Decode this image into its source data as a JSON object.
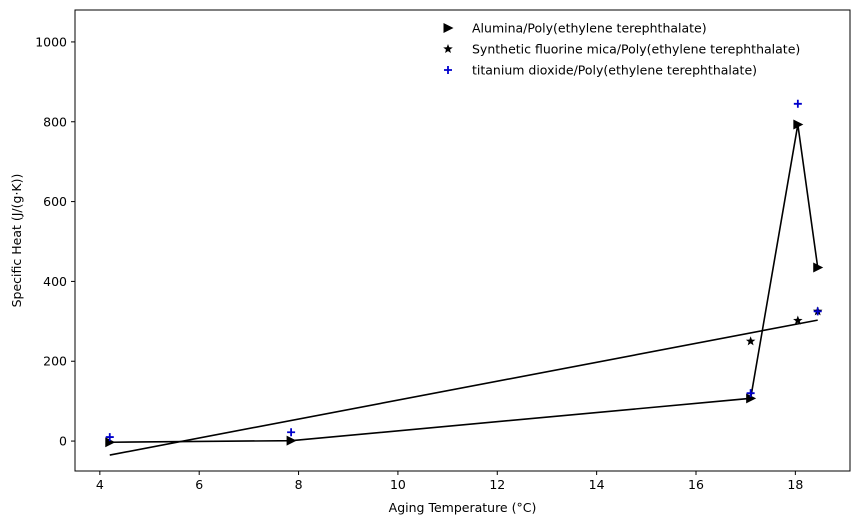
{
  "chart_data": {
    "type": "scatter",
    "title": "",
    "xlabel": "Aging Temperature (°C)",
    "ylabel": "Specific Heat (J/(g·K))",
    "xlim": [
      3.5,
      19.1
    ],
    "ylim": [
      -75,
      1080
    ],
    "xticks": [
      4,
      6,
      8,
      10,
      12,
      14,
      16,
      18
    ],
    "yticks": [
      0,
      200,
      400,
      600,
      800,
      1000
    ],
    "grid": false,
    "legend_placement": "top-right",
    "series": [
      {
        "name": "Alumina/Poly(ethylene terephthalate)",
        "marker": "triangle-right",
        "color": "#000000",
        "x": [
          4.2,
          7.85,
          17.1,
          18.05,
          18.45
        ],
        "y": [
          -3,
          1,
          107,
          793,
          435
        ]
      },
      {
        "name": "Synthetic fluorine mica/Poly(ethylene terephthalate)",
        "marker": "star",
        "color": "#000000",
        "x": [
          17.1,
          18.05,
          18.45
        ],
        "y": [
          250,
          302,
          325
        ]
      },
      {
        "name": "titanium dioxide/Poly(ethylene terephthalate)",
        "marker": "plus",
        "color": "#0000cc",
        "x": [
          4.2,
          7.85,
          17.1,
          18.05,
          18.45
        ],
        "y": [
          10,
          22,
          120,
          845,
          325
        ]
      }
    ],
    "lines": [
      {
        "color": "#000000",
        "x": [
          4.2,
          7.85,
          17.1,
          18.05,
          18.45
        ],
        "y": [
          -3,
          1,
          107,
          793,
          435
        ]
      },
      {
        "color": "#000000",
        "x": [
          4.2,
          18.45
        ],
        "y": [
          -35,
          303
        ]
      }
    ]
  }
}
